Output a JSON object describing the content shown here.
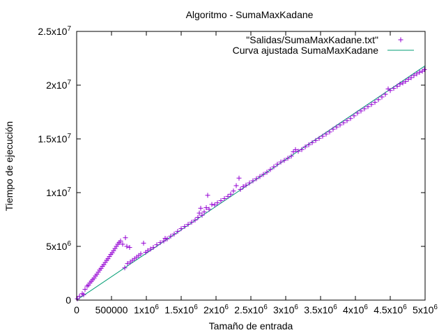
{
  "chart_data": {
    "type": "scatter",
    "title": "Algoritmo - SumaMaxKadane",
    "xlabel": "Tamaño de entrada",
    "ylabel": "Tiempo de ejecución",
    "xlim": [
      0,
      5000000
    ],
    "ylim": [
      0,
      25000000
    ],
    "grid": false,
    "legend_position": "top-right",
    "x_ticks": [
      {
        "value": 0,
        "base": "0",
        "exp": ""
      },
      {
        "value": 500000,
        "base": "500000",
        "exp": ""
      },
      {
        "value": 1000000,
        "base": "1x10",
        "exp": "6"
      },
      {
        "value": 1500000,
        "base": "1.5x10",
        "exp": "6"
      },
      {
        "value": 2000000,
        "base": "2x10",
        "exp": "6"
      },
      {
        "value": 2500000,
        "base": "2.5x10",
        "exp": "6"
      },
      {
        "value": 3000000,
        "base": "3x10",
        "exp": "6"
      },
      {
        "value": 3500000,
        "base": "3.5x10",
        "exp": "6"
      },
      {
        "value": 4000000,
        "base": "4x10",
        "exp": "6"
      },
      {
        "value": 4500000,
        "base": "4.5x10",
        "exp": "6"
      },
      {
        "value": 5000000,
        "base": "5x10",
        "exp": "6"
      }
    ],
    "y_ticks": [
      {
        "value": 0,
        "base": "0",
        "exp": ""
      },
      {
        "value": 5000000,
        "base": "5x10",
        "exp": "6"
      },
      {
        "value": 10000000,
        "base": "1x10",
        "exp": "7"
      },
      {
        "value": 15000000,
        "base": "1.5x10",
        "exp": "7"
      },
      {
        "value": 20000000,
        "base": "2x10",
        "exp": "7"
      },
      {
        "value": 25000000,
        "base": "2.5x10",
        "exp": "7"
      }
    ],
    "series": [
      {
        "name": "\"Salidas/SumaMaxKadane.txt\"",
        "kind": "points",
        "marker": "+",
        "color": "#9400d3",
        "points": [
          [
            10000,
            120000
          ],
          [
            40000,
            350000
          ],
          [
            80000,
            600000
          ],
          [
            100000,
            500000
          ],
          [
            120000,
            1000000
          ],
          [
            150000,
            1300000
          ],
          [
            170000,
            1400000
          ],
          [
            190000,
            1600000
          ],
          [
            210000,
            1750000
          ],
          [
            230000,
            1900000
          ],
          [
            250000,
            2050000
          ],
          [
            270000,
            2250000
          ],
          [
            290000,
            2400000
          ],
          [
            310000,
            2600000
          ],
          [
            330000,
            2800000
          ],
          [
            350000,
            2950000
          ],
          [
            370000,
            3150000
          ],
          [
            390000,
            3300000
          ],
          [
            410000,
            3500000
          ],
          [
            430000,
            3700000
          ],
          [
            450000,
            3850000
          ],
          [
            470000,
            4050000
          ],
          [
            490000,
            4250000
          ],
          [
            510000,
            4400000
          ],
          [
            530000,
            4600000
          ],
          [
            550000,
            4800000
          ],
          [
            570000,
            5000000
          ],
          [
            590000,
            5200000
          ],
          [
            610000,
            5350000
          ],
          [
            630000,
            5500000
          ],
          [
            660000,
            5200000
          ],
          [
            700000,
            5800000
          ],
          [
            720000,
            5000000
          ],
          [
            760000,
            4900000
          ],
          [
            690000,
            3000000
          ],
          [
            730000,
            3400000
          ],
          [
            770000,
            3550000
          ],
          [
            800000,
            3700000
          ],
          [
            830000,
            3850000
          ],
          [
            860000,
            4000000
          ],
          [
            890000,
            4150000
          ],
          [
            920000,
            4300000
          ],
          [
            960000,
            5300000
          ],
          [
            990000,
            4450000
          ],
          [
            1020000,
            4600000
          ],
          [
            1060000,
            4750000
          ],
          [
            1100000,
            4900000
          ],
          [
            1150000,
            5150000
          ],
          [
            1200000,
            5350000
          ],
          [
            1250000,
            5500000
          ],
          [
            1270000,
            5750000
          ],
          [
            1300000,
            5700000
          ],
          [
            1350000,
            5950000
          ],
          [
            1400000,
            6150000
          ],
          [
            1450000,
            6400000
          ],
          [
            1500000,
            6650000
          ],
          [
            1550000,
            6850000
          ],
          [
            1600000,
            7050000
          ],
          [
            1650000,
            7250000
          ],
          [
            1700000,
            7450000
          ],
          [
            1740000,
            7700000
          ],
          [
            1760000,
            8100000
          ],
          [
            1780000,
            8550000
          ],
          [
            1800000,
            7900000
          ],
          [
            1830000,
            8200000
          ],
          [
            1860000,
            8600000
          ],
          [
            1880000,
            9750000
          ],
          [
            1900000,
            8450000
          ],
          [
            1940000,
            8900000
          ],
          [
            1980000,
            8850000
          ],
          [
            2020000,
            9050000
          ],
          [
            2070000,
            9250000
          ],
          [
            2120000,
            9450000
          ],
          [
            2170000,
            9650000
          ],
          [
            2210000,
            9850000
          ],
          [
            2250000,
            10150000
          ],
          [
            2290000,
            10650000
          ],
          [
            2330000,
            11350000
          ],
          [
            2350000,
            10300000
          ],
          [
            2390000,
            10550000
          ],
          [
            2430000,
            10700000
          ],
          [
            2480000,
            10900000
          ],
          [
            2530000,
            11100000
          ],
          [
            2580000,
            11300000
          ],
          [
            2630000,
            11500000
          ],
          [
            2680000,
            11700000
          ],
          [
            2730000,
            11900000
          ],
          [
            2780000,
            12150000
          ],
          [
            2830000,
            12400000
          ],
          [
            2880000,
            12650000
          ],
          [
            2930000,
            12850000
          ],
          [
            2980000,
            13000000
          ],
          [
            3030000,
            13200000
          ],
          [
            3080000,
            13400000
          ],
          [
            3110000,
            13800000
          ],
          [
            3140000,
            14000000
          ],
          [
            3180000,
            13850000
          ],
          [
            3230000,
            14000000
          ],
          [
            3280000,
            14250000
          ],
          [
            3330000,
            14450000
          ],
          [
            3380000,
            14650000
          ],
          [
            3430000,
            14850000
          ],
          [
            3480000,
            15050000
          ],
          [
            3530000,
            15250000
          ],
          [
            3580000,
            15450000
          ],
          [
            3630000,
            15650000
          ],
          [
            3680000,
            15900000
          ],
          [
            3730000,
            16100000
          ],
          [
            3780000,
            16300000
          ],
          [
            3830000,
            16500000
          ],
          [
            3880000,
            16700000
          ],
          [
            3930000,
            16900000
          ],
          [
            3980000,
            17150000
          ],
          [
            4030000,
            17400000
          ],
          [
            4080000,
            17600000
          ],
          [
            4130000,
            17800000
          ],
          [
            4180000,
            18000000
          ],
          [
            4230000,
            18200000
          ],
          [
            4280000,
            18400000
          ],
          [
            4330000,
            18650000
          ],
          [
            4380000,
            18900000
          ],
          [
            4430000,
            19150000
          ],
          [
            4470000,
            19650000
          ],
          [
            4500000,
            19500000
          ],
          [
            4550000,
            19700000
          ],
          [
            4600000,
            19900000
          ],
          [
            4640000,
            20100000
          ],
          [
            4680000,
            20200000
          ],
          [
            4720000,
            20350000
          ],
          [
            4760000,
            20550000
          ],
          [
            4800000,
            20700000
          ],
          [
            4840000,
            20900000
          ],
          [
            4880000,
            21050000
          ],
          [
            4920000,
            21200000
          ],
          [
            4960000,
            21300000
          ],
          [
            4990000,
            21450000
          ]
        ]
      },
      {
        "name": "Curva ajustada SumaMaxKadane",
        "kind": "line",
        "color": "#009e73",
        "points": [
          [
            0,
            0
          ],
          [
            5000000,
            21800000
          ]
        ]
      }
    ]
  }
}
